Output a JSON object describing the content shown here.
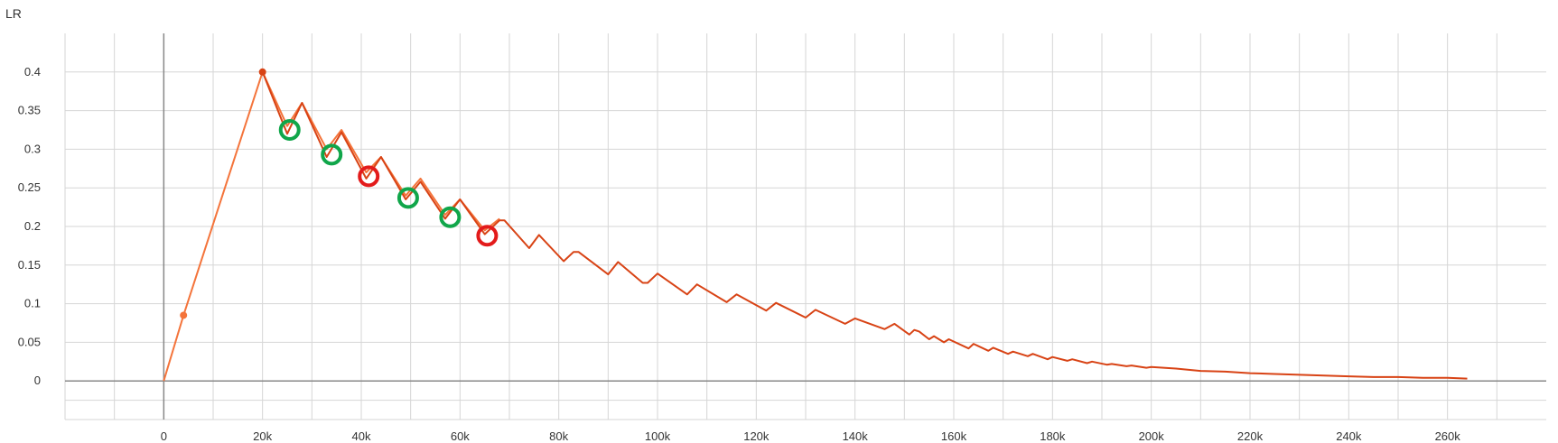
{
  "chart_data": {
    "type": "line",
    "title": "",
    "ylabel": "LR",
    "xlabel": "",
    "xlim": [
      -20000,
      280000
    ],
    "ylim": [
      -0.05,
      0.45
    ],
    "grid": true,
    "x_ticks": [
      0,
      20000,
      40000,
      60000,
      80000,
      100000,
      120000,
      140000,
      160000,
      180000,
      200000,
      220000,
      240000,
      260000
    ],
    "x_tick_labels": [
      "0",
      "20k",
      "40k",
      "60k",
      "80k",
      "100k",
      "120k",
      "140k",
      "160k",
      "180k",
      "200k",
      "220k",
      "240k",
      "260k"
    ],
    "y_ticks": [
      0,
      0.05,
      0.1,
      0.15,
      0.2,
      0.25,
      0.3,
      0.35,
      0.4
    ],
    "y_tick_labels": [
      "0",
      "0.05",
      "0.1",
      "0.15",
      "0.2",
      "0.25",
      "0.3",
      "0.35",
      "0.4"
    ],
    "series": [
      {
        "color": "#f4743b",
        "points": [
          [
            0,
            0
          ],
          [
            4000,
            0.085
          ],
          [
            20000,
            0.4
          ],
          [
            25000,
            0.33
          ],
          [
            28000,
            0.36
          ],
          [
            33000,
            0.3
          ],
          [
            36000,
            0.325
          ],
          [
            41000,
            0.27
          ],
          [
            44000,
            0.29
          ],
          [
            49000,
            0.24
          ],
          [
            52000,
            0.262
          ],
          [
            57000,
            0.215
          ],
          [
            60000,
            0.235
          ],
          [
            65000,
            0.195
          ],
          [
            68000,
            0.21
          ]
        ],
        "markers": [
          [
            4000,
            0.085
          ]
        ]
      },
      {
        "color": "#d84315",
        "points": [
          [
            20000,
            0.4
          ],
          [
            25000,
            0.32
          ],
          [
            28000,
            0.36
          ],
          [
            33000,
            0.29
          ],
          [
            36000,
            0.322
          ],
          [
            41000,
            0.262
          ],
          [
            44000,
            0.29
          ],
          [
            49000,
            0.235
          ],
          [
            52000,
            0.258
          ],
          [
            57000,
            0.21
          ],
          [
            60000,
            0.235
          ],
          [
            65000,
            0.19
          ],
          [
            68000,
            0.208
          ],
          [
            69000,
            0.208
          ],
          [
            74000,
            0.172
          ],
          [
            76000,
            0.189
          ],
          [
            81000,
            0.155
          ],
          [
            83000,
            0.167
          ],
          [
            84000,
            0.167
          ],
          [
            90000,
            0.138
          ],
          [
            92000,
            0.154
          ],
          [
            97000,
            0.127
          ],
          [
            98000,
            0.127
          ],
          [
            100000,
            0.139
          ],
          [
            106000,
            0.112
          ],
          [
            108000,
            0.125
          ],
          [
            114000,
            0.102
          ],
          [
            116000,
            0.112
          ],
          [
            122000,
            0.091
          ],
          [
            124000,
            0.101
          ],
          [
            130000,
            0.082
          ],
          [
            132000,
            0.092
          ],
          [
            138000,
            0.074
          ],
          [
            140000,
            0.081
          ],
          [
            146000,
            0.067
          ],
          [
            148000,
            0.074
          ],
          [
            151000,
            0.06
          ],
          [
            152000,
            0.066
          ],
          [
            153000,
            0.064
          ],
          [
            155000,
            0.054
          ],
          [
            156000,
            0.058
          ],
          [
            158000,
            0.05
          ],
          [
            159000,
            0.054
          ],
          [
            163000,
            0.042
          ],
          [
            164000,
            0.048
          ],
          [
            167000,
            0.039
          ],
          [
            168000,
            0.043
          ],
          [
            171000,
            0.035
          ],
          [
            172000,
            0.038
          ],
          [
            175000,
            0.032
          ],
          [
            176000,
            0.035
          ],
          [
            179000,
            0.028
          ],
          [
            180000,
            0.031
          ],
          [
            183000,
            0.026
          ],
          [
            184000,
            0.028
          ],
          [
            187000,
            0.023
          ],
          [
            188000,
            0.025
          ],
          [
            191000,
            0.021
          ],
          [
            192000,
            0.022
          ],
          [
            195000,
            0.019
          ],
          [
            196000,
            0.02
          ],
          [
            199000,
            0.017
          ],
          [
            200000,
            0.018
          ],
          [
            205000,
            0.016
          ],
          [
            210000,
            0.013
          ],
          [
            215000,
            0.012
          ],
          [
            220000,
            0.01
          ],
          [
            225000,
            0.009
          ],
          [
            230000,
            0.008
          ],
          [
            235000,
            0.007
          ],
          [
            240000,
            0.006
          ],
          [
            245000,
            0.005
          ],
          [
            250000,
            0.005
          ],
          [
            255000,
            0.004
          ],
          [
            260000,
            0.004
          ],
          [
            264000,
            0.003
          ]
        ],
        "markers": [
          [
            20000,
            0.4
          ]
        ]
      }
    ],
    "annotations": [
      {
        "type": "circle",
        "color": "#10a64a",
        "x": 25500,
        "y": 0.325
      },
      {
        "type": "circle",
        "color": "#10a64a",
        "x": 34000,
        "y": 0.293
      },
      {
        "type": "circle",
        "color": "#e31b1b",
        "x": 41500,
        "y": 0.265
      },
      {
        "type": "circle",
        "color": "#10a64a",
        "x": 49500,
        "y": 0.237
      },
      {
        "type": "circle",
        "color": "#10a64a",
        "x": 58000,
        "y": 0.212
      },
      {
        "type": "circle",
        "color": "#e31b1b",
        "x": 65500,
        "y": 0.188
      }
    ]
  }
}
